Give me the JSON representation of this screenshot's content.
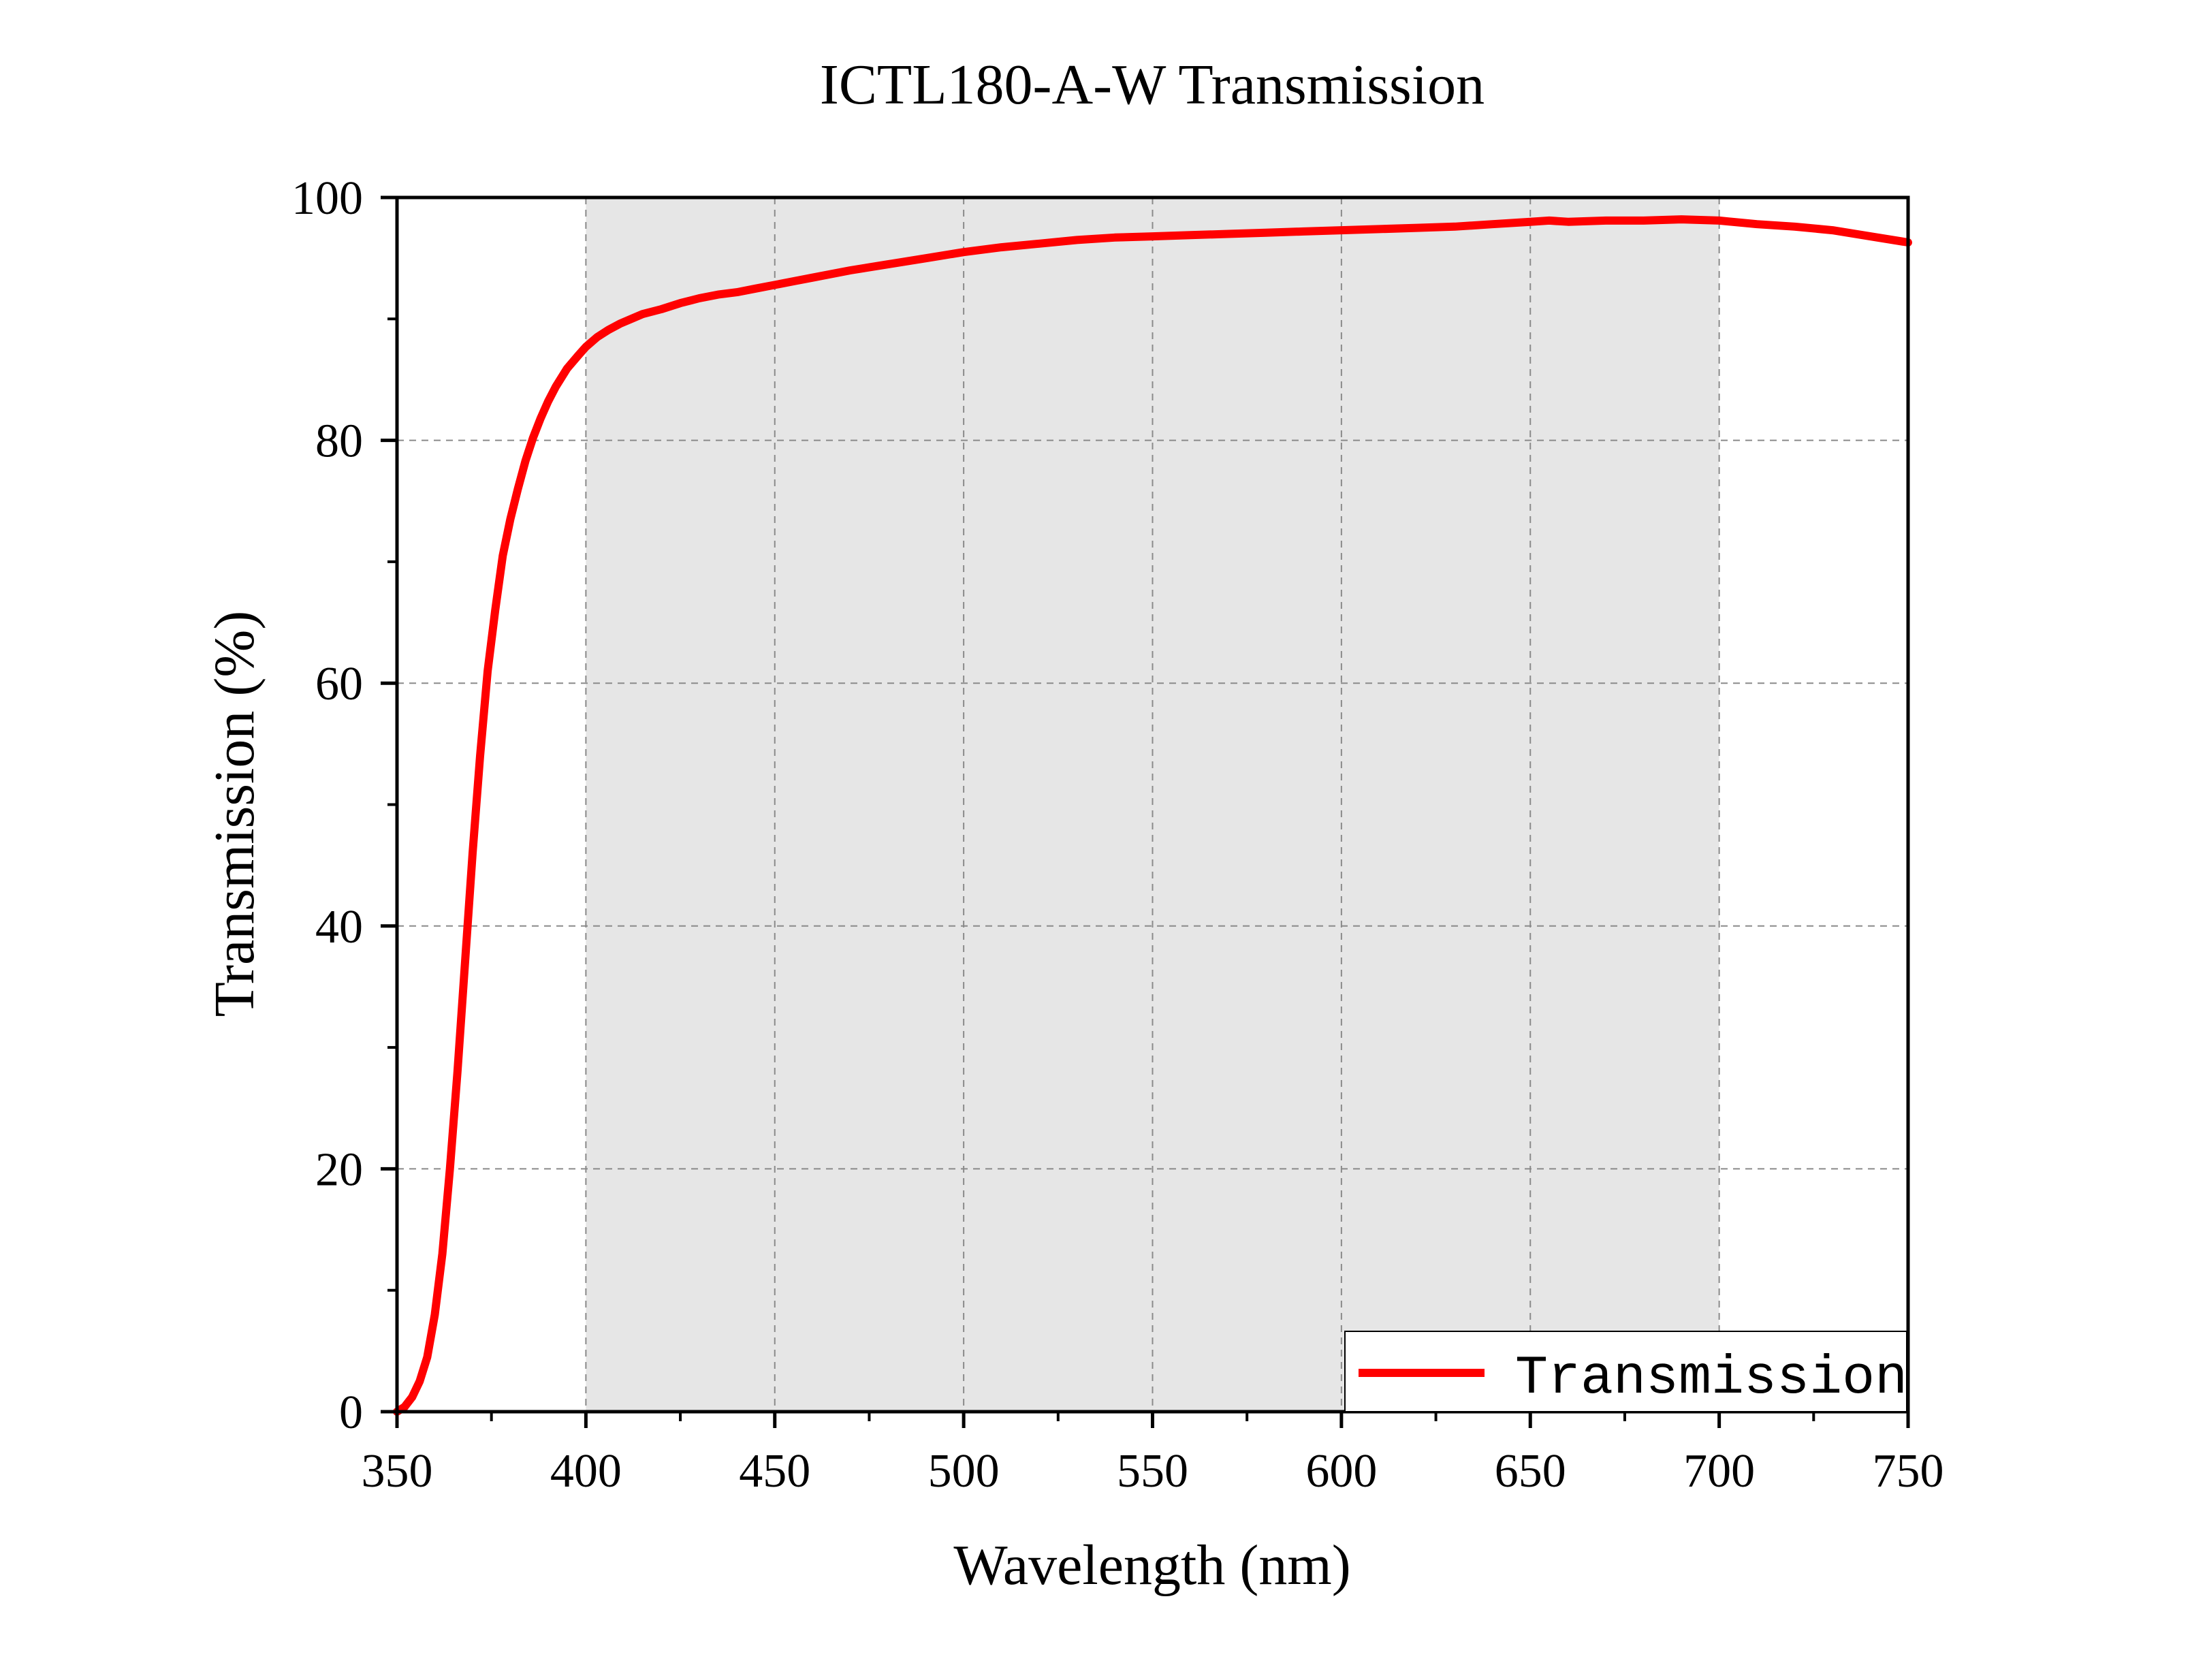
{
  "chart_data": {
    "type": "line",
    "title": "ICTL180-A-W Transmission",
    "xlabel": "Wavelength (nm)",
    "ylabel": "Transmission (%)",
    "xlim": [
      350,
      750
    ],
    "ylim": [
      0,
      100
    ],
    "x_ticks": [
      350,
      400,
      450,
      500,
      550,
      600,
      650,
      700,
      750
    ],
    "y_ticks": [
      0,
      20,
      40,
      60,
      80,
      100
    ],
    "x_tick_labels": [
      "350",
      "400",
      "450",
      "500",
      "550",
      "600",
      "650",
      "700",
      "750"
    ],
    "y_tick_labels": [
      "0",
      "20",
      "40",
      "60",
      "80",
      "100"
    ],
    "grid": true,
    "shaded_region": {
      "x_range": [
        400,
        700
      ],
      "color": "#e6e6e6"
    },
    "legend": {
      "position": "bottom-right",
      "entries": [
        "Transmission"
      ]
    },
    "series": [
      {
        "name": "Transmission",
        "color": "#ff0000",
        "x": [
          350,
          352,
          354,
          356,
          358,
          360,
          362,
          364,
          366,
          368,
          370,
          372,
          374,
          376,
          378,
          380,
          382,
          384,
          386,
          388,
          390,
          392,
          395,
          398,
          400,
          403,
          406,
          409,
          412,
          415,
          420,
          425,
          430,
          435,
          440,
          445,
          450,
          455,
          460,
          470,
          480,
          490,
          500,
          510,
          520,
          530,
          540,
          550,
          560,
          570,
          580,
          590,
          600,
          610,
          620,
          630,
          640,
          650,
          655,
          660,
          670,
          680,
          690,
          700,
          710,
          720,
          730,
          740,
          750
        ],
        "y": [
          0,
          0.4,
          1.2,
          2.5,
          4.5,
          8,
          13,
          20,
          28,
          37,
          46,
          54,
          61,
          66,
          70.5,
          73.5,
          76,
          78.3,
          80.2,
          81.8,
          83.2,
          84.4,
          85.9,
          87,
          87.7,
          88.5,
          89.1,
          89.6,
          90,
          90.4,
          90.8,
          91.3,
          91.7,
          92,
          92.2,
          92.5,
          92.8,
          93.1,
          93.4,
          94,
          94.5,
          95,
          95.5,
          95.9,
          96.2,
          96.5,
          96.7,
          96.8,
          96.9,
          97,
          97.1,
          97.2,
          97.3,
          97.4,
          97.5,
          97.6,
          97.8,
          98,
          98.1,
          98,
          98.1,
          98.1,
          98.2,
          98.1,
          97.8,
          97.6,
          97.3,
          96.8,
          96.3
        ]
      }
    ]
  }
}
